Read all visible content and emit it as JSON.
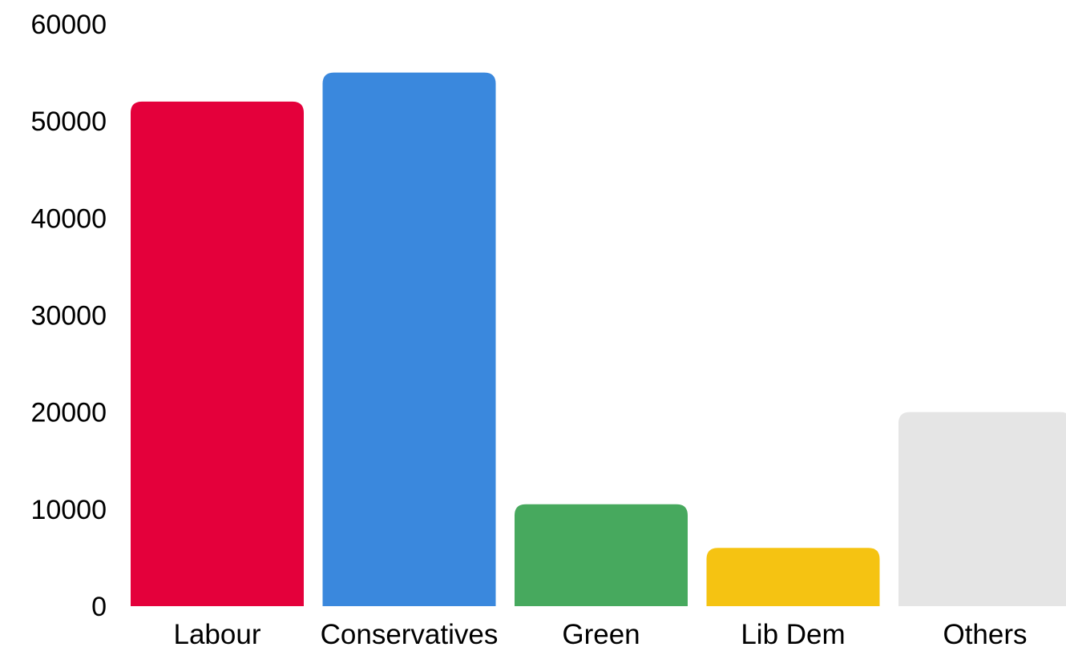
{
  "chart_data": {
    "type": "bar",
    "categories": [
      "Labour",
      "Conservatives",
      "Green",
      "Lib Dem",
      "Others"
    ],
    "values": [
      52000,
      55000,
      10500,
      6000,
      20000
    ],
    "colors": [
      "#e4003b",
      "#3a88dd",
      "#47a95e",
      "#f5c312",
      "#e5e5e5"
    ],
    "ylim": [
      0,
      60000
    ],
    "yticks": [
      0,
      10000,
      20000,
      30000,
      40000,
      50000,
      60000
    ],
    "grid": false,
    "title": "",
    "xlabel": "",
    "ylabel": ""
  }
}
